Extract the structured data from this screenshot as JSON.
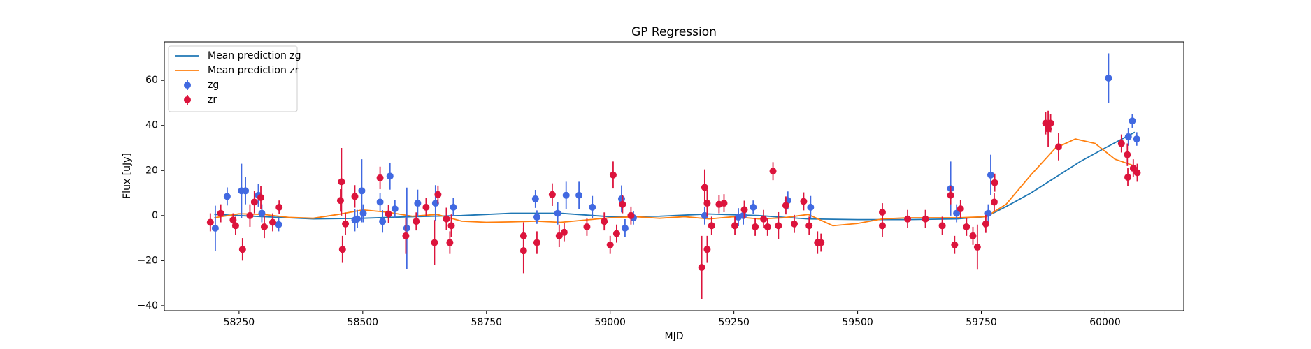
{
  "chart_data": {
    "type": "scatter",
    "title": "GP Regression",
    "x_label": "MJD",
    "y_label": "Flux [uJy]",
    "xlim": [
      58099,
      60159
    ],
    "ylim": [
      -42.2,
      77.1
    ],
    "xticks": [
      58250,
      58500,
      58750,
      59000,
      59250,
      59500,
      59750,
      60000
    ],
    "yticks": [
      {
        "value": -40,
        "label": "−40"
      },
      {
        "value": -20,
        "label": "−20"
      },
      0,
      20,
      40,
      60
    ],
    "legend": "upper left",
    "series": [
      {
        "name": "Mean prediction zg",
        "type": "line",
        "color": "#1f77b4",
        "x": [
          58200,
          58300,
          58400,
          58500,
          58600,
          58700,
          58800,
          58900,
          59000,
          59100,
          59200,
          59300,
          59400,
          59500,
          59600,
          59700,
          59760,
          59800,
          59850,
          59900,
          59950,
          60000,
          60060
        ],
        "values": [
          0.5,
          -0.5,
          -1.5,
          -1.2,
          -0.5,
          0,
          1,
          1,
          -0.5,
          -0.3,
          0.7,
          0,
          -1.5,
          -1.8,
          -1.8,
          -1.5,
          -0.5,
          4,
          10,
          17,
          24,
          30,
          37
        ]
      },
      {
        "name": "Mean prediction zr",
        "type": "line",
        "color": "#ff7f0e",
        "x": [
          58200,
          58250,
          58300,
          58350,
          58400,
          58450,
          58500,
          58550,
          58600,
          58650,
          58700,
          58750,
          58800,
          58850,
          58900,
          58950,
          59000,
          59050,
          59100,
          59150,
          59200,
          59250,
          59300,
          59350,
          59400,
          59450,
          59500,
          59550,
          59600,
          59700,
          59760,
          59800,
          59850,
          59900,
          59940,
          59980,
          60020,
          60060
        ],
        "values": [
          -1,
          0.8,
          0.5,
          -0.8,
          -1.2,
          0.5,
          2.5,
          1.5,
          -0.3,
          0.5,
          -2.5,
          -3,
          -2.8,
          -2.5,
          -3,
          -2,
          -1,
          -0.5,
          -1.2,
          -0.5,
          -1.5,
          -0.5,
          -1.5,
          -1,
          0.5,
          -4.5,
          -3.5,
          -1.5,
          -1,
          -1,
          -0.5,
          5,
          18,
          30,
          34,
          32,
          25,
          22
        ]
      },
      {
        "name": "zg",
        "type": "errorbar",
        "color": "#4169e1",
        "x": [
          58202,
          58226,
          58255,
          58263,
          58289,
          58296,
          58330,
          58484,
          58489,
          58498,
          58501,
          58535,
          58540,
          58555,
          58565,
          58589,
          58611,
          58647,
          58683,
          58849,
          58852,
          58894,
          58911,
          58937,
          58964,
          59023,
          59030,
          59047,
          59191,
          59259,
          59269,
          59289,
          59359,
          59405,
          59688,
          59700,
          59764,
          59769,
          60007,
          60055,
          60064,
          60047
        ],
        "values": [
          -5.6,
          8.5,
          11,
          11,
          9,
          1,
          -4,
          -2,
          -1.5,
          11,
          1,
          6,
          -2.6,
          17.5,
          3,
          -5.6,
          5.5,
          5.5,
          3.7,
          7.4,
          -0.7,
          1,
          9,
          9,
          3.7,
          7.4,
          -5.6,
          -1,
          0,
          -0.7,
          0,
          3.7,
          6.7,
          3.7,
          12,
          1,
          1,
          18,
          61,
          42,
          34,
          35
        ],
        "errors": [
          10,
          4,
          12,
          6,
          5,
          4,
          3,
          5,
          4,
          14,
          4,
          4,
          5,
          6,
          4,
          18,
          6,
          8,
          4,
          4,
          3,
          5,
          6,
          6,
          5,
          6,
          4,
          3,
          4,
          4,
          4,
          3,
          4,
          5,
          12,
          4,
          4,
          9,
          11,
          3,
          3,
          4
        ]
      },
      {
        "name": "zr",
        "type": "errorbar",
        "color": "#dc143c",
        "x": [
          58192,
          58213,
          58238,
          58243,
          58257,
          58272,
          58281,
          58294,
          58301,
          58318,
          58331,
          58455,
          58457,
          58459,
          58465,
          58484,
          58535,
          58552,
          58587,
          58608,
          58628,
          58645,
          58652,
          58669,
          58676,
          58679,
          58825,
          58825,
          58852,
          58883,
          58897,
          58907,
          58953,
          58988,
          59000,
          59006,
          59013,
          59025,
          59042,
          59185,
          59191,
          59196,
          59196,
          59205,
          59220,
          59230,
          59252,
          59271,
          59293,
          59310,
          59318,
          59329,
          59340,
          59355,
          59372,
          59391,
          59402,
          59419,
          59426,
          59550,
          59550,
          59601,
          59637,
          59671,
          59688,
          59696,
          59708,
          59720,
          59733,
          59742,
          59759,
          59776,
          59777,
          59880,
          59885,
          59890,
          59906,
          60033,
          60045,
          60046,
          60057,
          60065
        ],
        "values": [
          -3,
          1,
          -2,
          -4.5,
          -15,
          0,
          6,
          8,
          -5,
          -3,
          3.7,
          6.7,
          15,
          -15,
          -3.7,
          8.5,
          16.7,
          0.7,
          -9,
          -2.6,
          3.7,
          -12,
          9.3,
          -1.5,
          -12,
          -4.5,
          -9,
          -15.6,
          -12,
          9.3,
          -9,
          -7.4,
          -5,
          -2.6,
          -13,
          18,
          -8,
          5,
          0,
          -23,
          12.5,
          -15,
          5.5,
          -4.5,
          5,
          5.5,
          -4.5,
          2.6,
          -5,
          -1.5,
          -5,
          19.7,
          -4.5,
          4.5,
          -3.7,
          6.3,
          -4.5,
          -12,
          -12,
          1.5,
          -4.5,
          -1.5,
          -1.5,
          -4.5,
          9,
          -13,
          3,
          -5,
          -9,
          -14,
          -3.7,
          6,
          14.6,
          41,
          38.5,
          41,
          30.5,
          32,
          27,
          17,
          21,
          19
        ],
        "errors": [
          4,
          4,
          3,
          4,
          5,
          5,
          5,
          5,
          5,
          4,
          3,
          5,
          15,
          6,
          5,
          5,
          5,
          4,
          8,
          4,
          4,
          10,
          4,
          5,
          5,
          5,
          6,
          10,
          5,
          5,
          5,
          4,
          4,
          4,
          4,
          6,
          4,
          4,
          4,
          14,
          8,
          6,
          6,
          4,
          4,
          4,
          4,
          4,
          4,
          4,
          4,
          4,
          6,
          4,
          4,
          4,
          4,
          5,
          4,
          4,
          5,
          4,
          4,
          4,
          4,
          4,
          4,
          4,
          4,
          10,
          4,
          4,
          4,
          5,
          8,
          4,
          6,
          4,
          5,
          4,
          4,
          4
        ]
      }
    ]
  }
}
